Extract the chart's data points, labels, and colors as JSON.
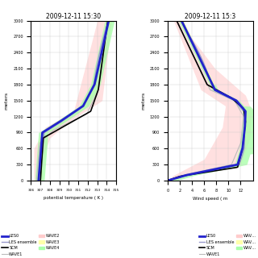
{
  "title_left": "2009-12-11 15:30",
  "title_right": "2009-12-11 15:3",
  "xlabel_left": "potential temperature ( K )",
  "xlabel_right": "Wind speed ( m",
  "ylabel": "meters",
  "xlim_left": [
    306,
    315
  ],
  "xlim_right": [
    0,
    14
  ],
  "ylim": [
    0,
    3000
  ],
  "xticks_left": [
    306,
    307,
    308,
    309,
    310,
    311,
    312,
    313,
    314,
    315
  ],
  "xticks_right": [
    0,
    2,
    4,
    6,
    8,
    10,
    12
  ],
  "yticks": [
    0,
    300,
    600,
    900,
    1200,
    1500,
    1800,
    2100,
    2400,
    2700,
    3000
  ],
  "colors": {
    "LES0": "#2222cc",
    "LES_ensemble": "#9999cc",
    "SCM": "#000000",
    "WAVE1": "#bbbbbb",
    "WAVE2_fill": "#ffcccc",
    "WAVE3_fill": "#ffffaa",
    "WAVE4_fill": "#aaffaa"
  },
  "background": "#ffffff"
}
